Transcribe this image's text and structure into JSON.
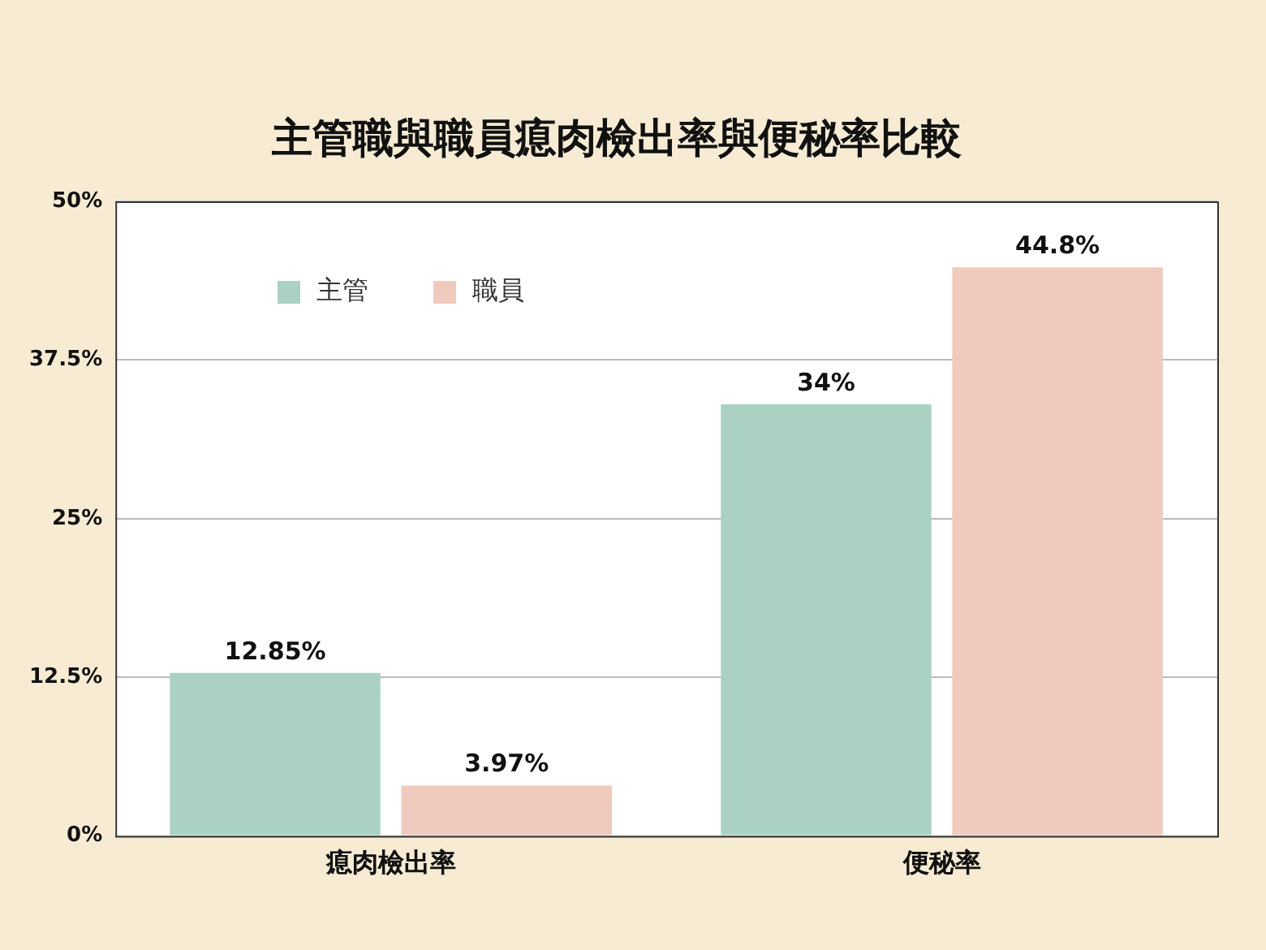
{
  "chart_data": {
    "type": "bar",
    "title": "主管職與職員瘜肉檢出率與便秘率比較",
    "categories": [
      "瘜肉檢出率",
      "便秘率"
    ],
    "series": [
      {
        "name": "主管",
        "color": "#abd1c3",
        "values": [
          12.85,
          34
        ],
        "value_labels": [
          "12.85%",
          "34%"
        ]
      },
      {
        "name": "職員",
        "color": "#f0cabd",
        "values": [
          3.97,
          44.8
        ],
        "value_labels": [
          "3.97%",
          "44.8%"
        ]
      }
    ],
    "ylim": [
      0,
      50
    ],
    "yticks": [
      {
        "value": 0,
        "label": "0%"
      },
      {
        "value": 12.5,
        "label": "12.5%"
      },
      {
        "value": 25,
        "label": "25%"
      },
      {
        "value": 37.5,
        "label": "37.5%"
      },
      {
        "value": 50,
        "label": "50%"
      }
    ],
    "grid": "y",
    "legend": "top left"
  }
}
